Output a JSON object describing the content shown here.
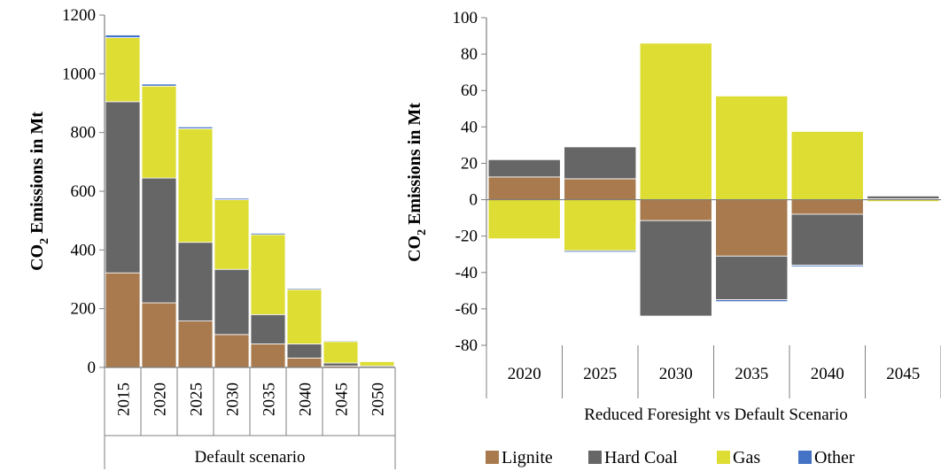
{
  "colors": {
    "lignite": "#A87A4E",
    "hard_coal": "#666666",
    "gas": "#DDDD33",
    "other": "#4472C4",
    "axis": "#7F7F7F",
    "gridline": "#CCCCCC"
  },
  "legend": {
    "items": [
      {
        "key": "lignite",
        "label": "Lignite"
      },
      {
        "key": "hard_coal",
        "label": "Hard Coal"
      },
      {
        "key": "gas",
        "label": "Gas"
      },
      {
        "key": "other",
        "label": "Other"
      }
    ]
  },
  "chart_data": [
    {
      "type": "bar",
      "stacked": true,
      "categories": [
        "2015",
        "2020",
        "2025",
        "2030",
        "2035",
        "2040",
        "2045",
        "2050"
      ],
      "series": [
        {
          "name": "Lignite",
          "key": "lignite",
          "values": [
            322,
            220,
            158,
            112,
            80,
            32,
            5,
            1
          ]
        },
        {
          "name": "Hard Coal",
          "key": "hard_coal",
          "values": [
            583,
            425,
            268,
            222,
            100,
            48,
            10,
            4
          ]
        },
        {
          "name": "Gas",
          "key": "gas",
          "values": [
            218,
            313,
            387,
            237,
            272,
            185,
            73,
            15
          ]
        },
        {
          "name": "Other",
          "key": "other",
          "values": [
            9,
            7,
            6,
            5,
            5,
            4,
            3,
            2
          ]
        }
      ],
      "title": "",
      "ylabel_prefix": "CO",
      "ylabel_sub": "2",
      "ylabel_suffix": " Emissions in Mt",
      "xlabel": "Default scenario",
      "ylim": [
        0,
        1200
      ],
      "yticks": [
        0,
        200,
        400,
        600,
        800,
        1000,
        1200
      ],
      "xtick_rotation": "vertical",
      "grid": false,
      "legend": "none"
    },
    {
      "type": "bar",
      "stacked": true,
      "categories": [
        "2020",
        "2025",
        "2030",
        "2035",
        "2040",
        "2045"
      ],
      "series": [
        {
          "name": "Lignite",
          "key": "lignite",
          "values": [
            12.5,
            11.5,
            -11.5,
            -31,
            -8,
            0.5
          ]
        },
        {
          "name": "Hard Coal",
          "key": "hard_coal",
          "values": [
            9.5,
            17.5,
            -52.5,
            -24,
            -28,
            1.5
          ]
        },
        {
          "name": "Gas",
          "key": "gas",
          "values": [
            -21.5,
            -28,
            86,
            57,
            37.5,
            -1
          ]
        },
        {
          "name": "Other",
          "key": "other",
          "values": [
            -0.3,
            -0.8,
            -0.3,
            -1,
            -0.8,
            0
          ]
        }
      ],
      "title": "",
      "ylabel_prefix": "CO",
      "ylabel_sub": "2",
      "ylabel_suffix": " Emissions in Mt",
      "xlabel": "Reduced Foresight vs Default Scenario",
      "ylim": [
        -80,
        100
      ],
      "yticks": [
        -80,
        -60,
        -40,
        -20,
        0,
        20,
        40,
        60,
        80,
        100
      ],
      "grid": false,
      "legend": "bottom"
    }
  ]
}
